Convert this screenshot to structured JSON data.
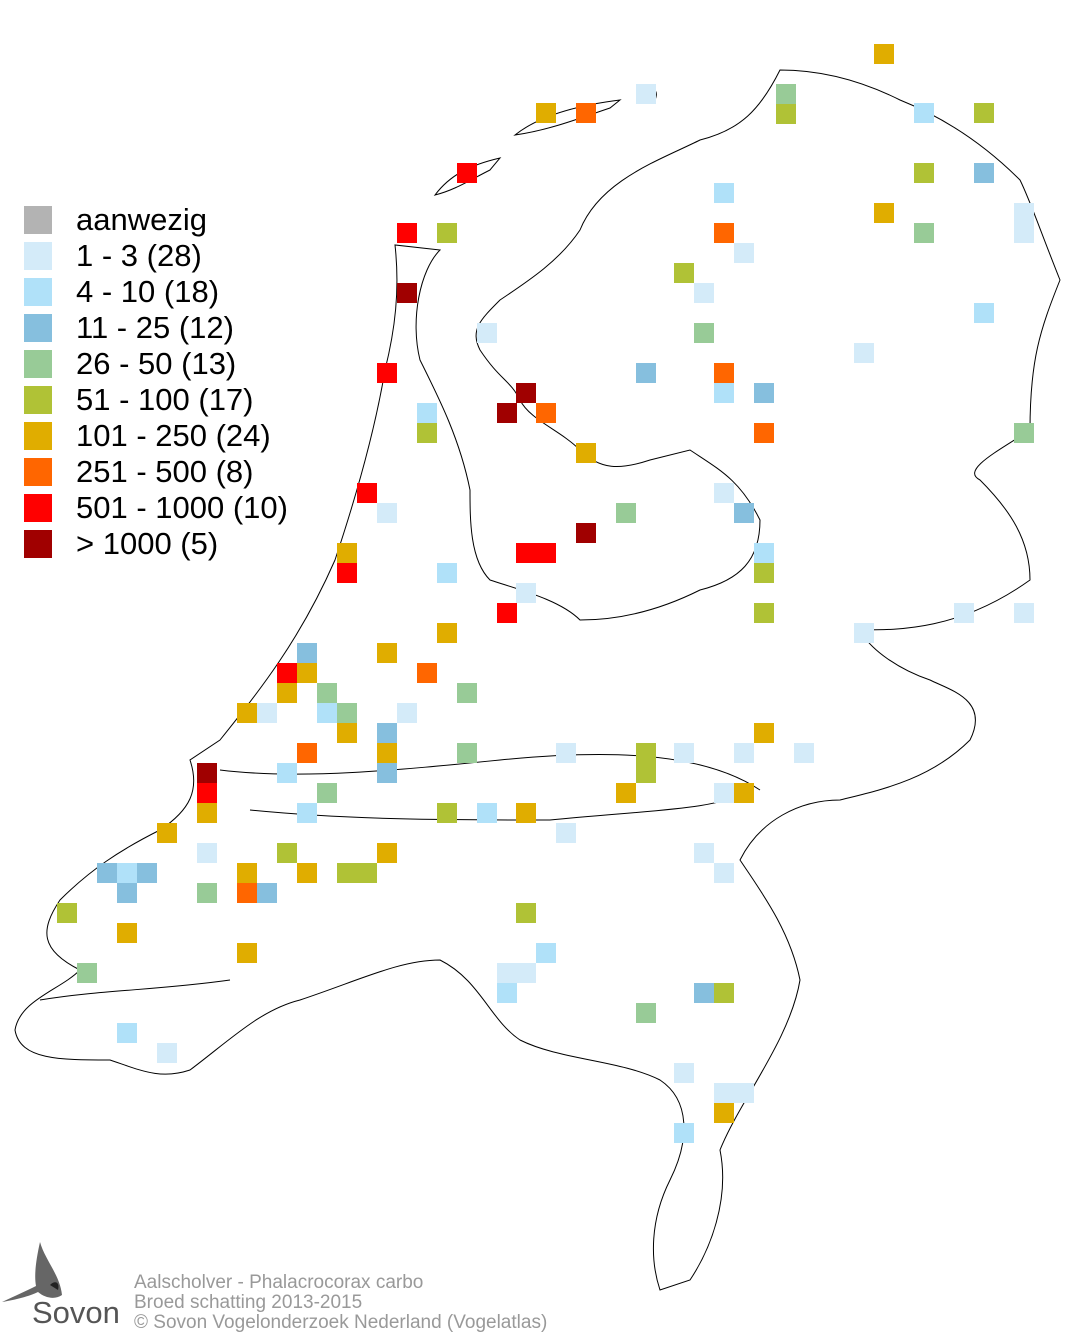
{
  "legend": {
    "items": [
      {
        "label": "aanwezig",
        "color": "#b3b3b3"
      },
      {
        "label": "1 - 3 (28)",
        "color": "#d4ebf9"
      },
      {
        "label": "4 - 10 (18)",
        "color": "#b0e1f9"
      },
      {
        "label": "11 - 25 (12)",
        "color": "#86bfde"
      },
      {
        "label": "26 - 50 (13)",
        "color": "#98cb97"
      },
      {
        "label": "51 - 100 (17)",
        "color": "#b0c236"
      },
      {
        "label": "101 - 250 (24)",
        "color": "#e0ad00"
      },
      {
        "label": "251 - 500 (8)",
        "color": "#ff6600"
      },
      {
        "label": "501 - 1000 (10)",
        "color": "#ff0000"
      },
      {
        "label": "> 1000 (5)",
        "color": "#a00000"
      }
    ]
  },
  "footer": {
    "species": "Aalscholver - Phalacrocorax carbo",
    "subtitle": "Broed schatting 2013-2015",
    "copyright": "© Sovon Vogelonderzoek Nederland (Vogelatlas)"
  },
  "logo": {
    "text": "Sovon"
  }
}
